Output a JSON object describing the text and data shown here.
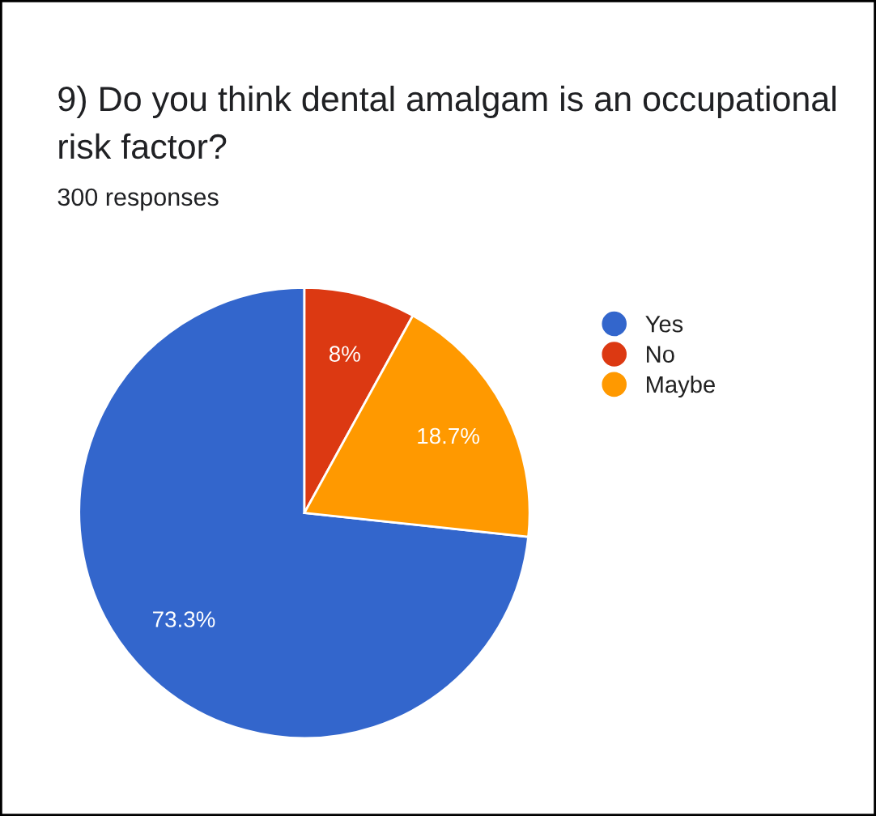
{
  "chart_data": {
    "type": "pie",
    "title": "9) Do you think dental amalgam is an occupational risk factor?",
    "subtitle": "300 responses",
    "categories": [
      "Yes",
      "No",
      "Maybe"
    ],
    "values": [
      73.3,
      8,
      18.7
    ],
    "colors": [
      "#3366cc",
      "#dc3912",
      "#ff9900"
    ],
    "value_labels": [
      "73.3%",
      "8%",
      "18.7%"
    ],
    "legend": "top right"
  }
}
